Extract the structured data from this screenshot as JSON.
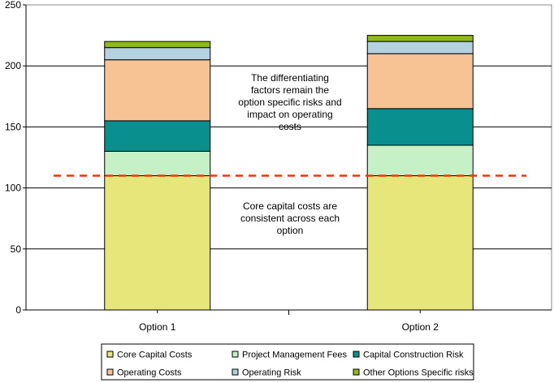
{
  "chart_data": {
    "type": "bar",
    "stacked": true,
    "categories": [
      "Option 1",
      "Option 2"
    ],
    "ylim": [
      0,
      250
    ],
    "yticks": [
      0,
      50,
      100,
      150,
      200,
      250
    ],
    "grid": true,
    "legend_position": "bottom",
    "series": [
      {
        "name": "Core Capital Costs",
        "values": [
          110,
          110
        ],
        "color": "#e6e67a"
      },
      {
        "name": "Project Management Fees",
        "values": [
          20,
          25
        ],
        "color": "#c6f0c6"
      },
      {
        "name": "Capital Construction Risk",
        "values": [
          25,
          30
        ],
        "color": "#0a8f8f"
      },
      {
        "name": "Operating Costs",
        "values": [
          50,
          45
        ],
        "color": "#f8c394"
      },
      {
        "name": "Operating Risk",
        "values": [
          10,
          10
        ],
        "color": "#b3d1de"
      },
      {
        "name": "Other Options Specific risks",
        "values": [
          5,
          5
        ],
        "color": "#8fb81a"
      }
    ],
    "reference_line": {
      "value": 110,
      "color": "#ff3300"
    },
    "annotations": [
      {
        "lines": [
          "The differentiating",
          "factors remain the",
          "option specific risks and",
          "impact on operating",
          "costs"
        ]
      },
      {
        "lines": [
          "Core capital costs are",
          "consistent across each",
          "option"
        ]
      }
    ]
  }
}
